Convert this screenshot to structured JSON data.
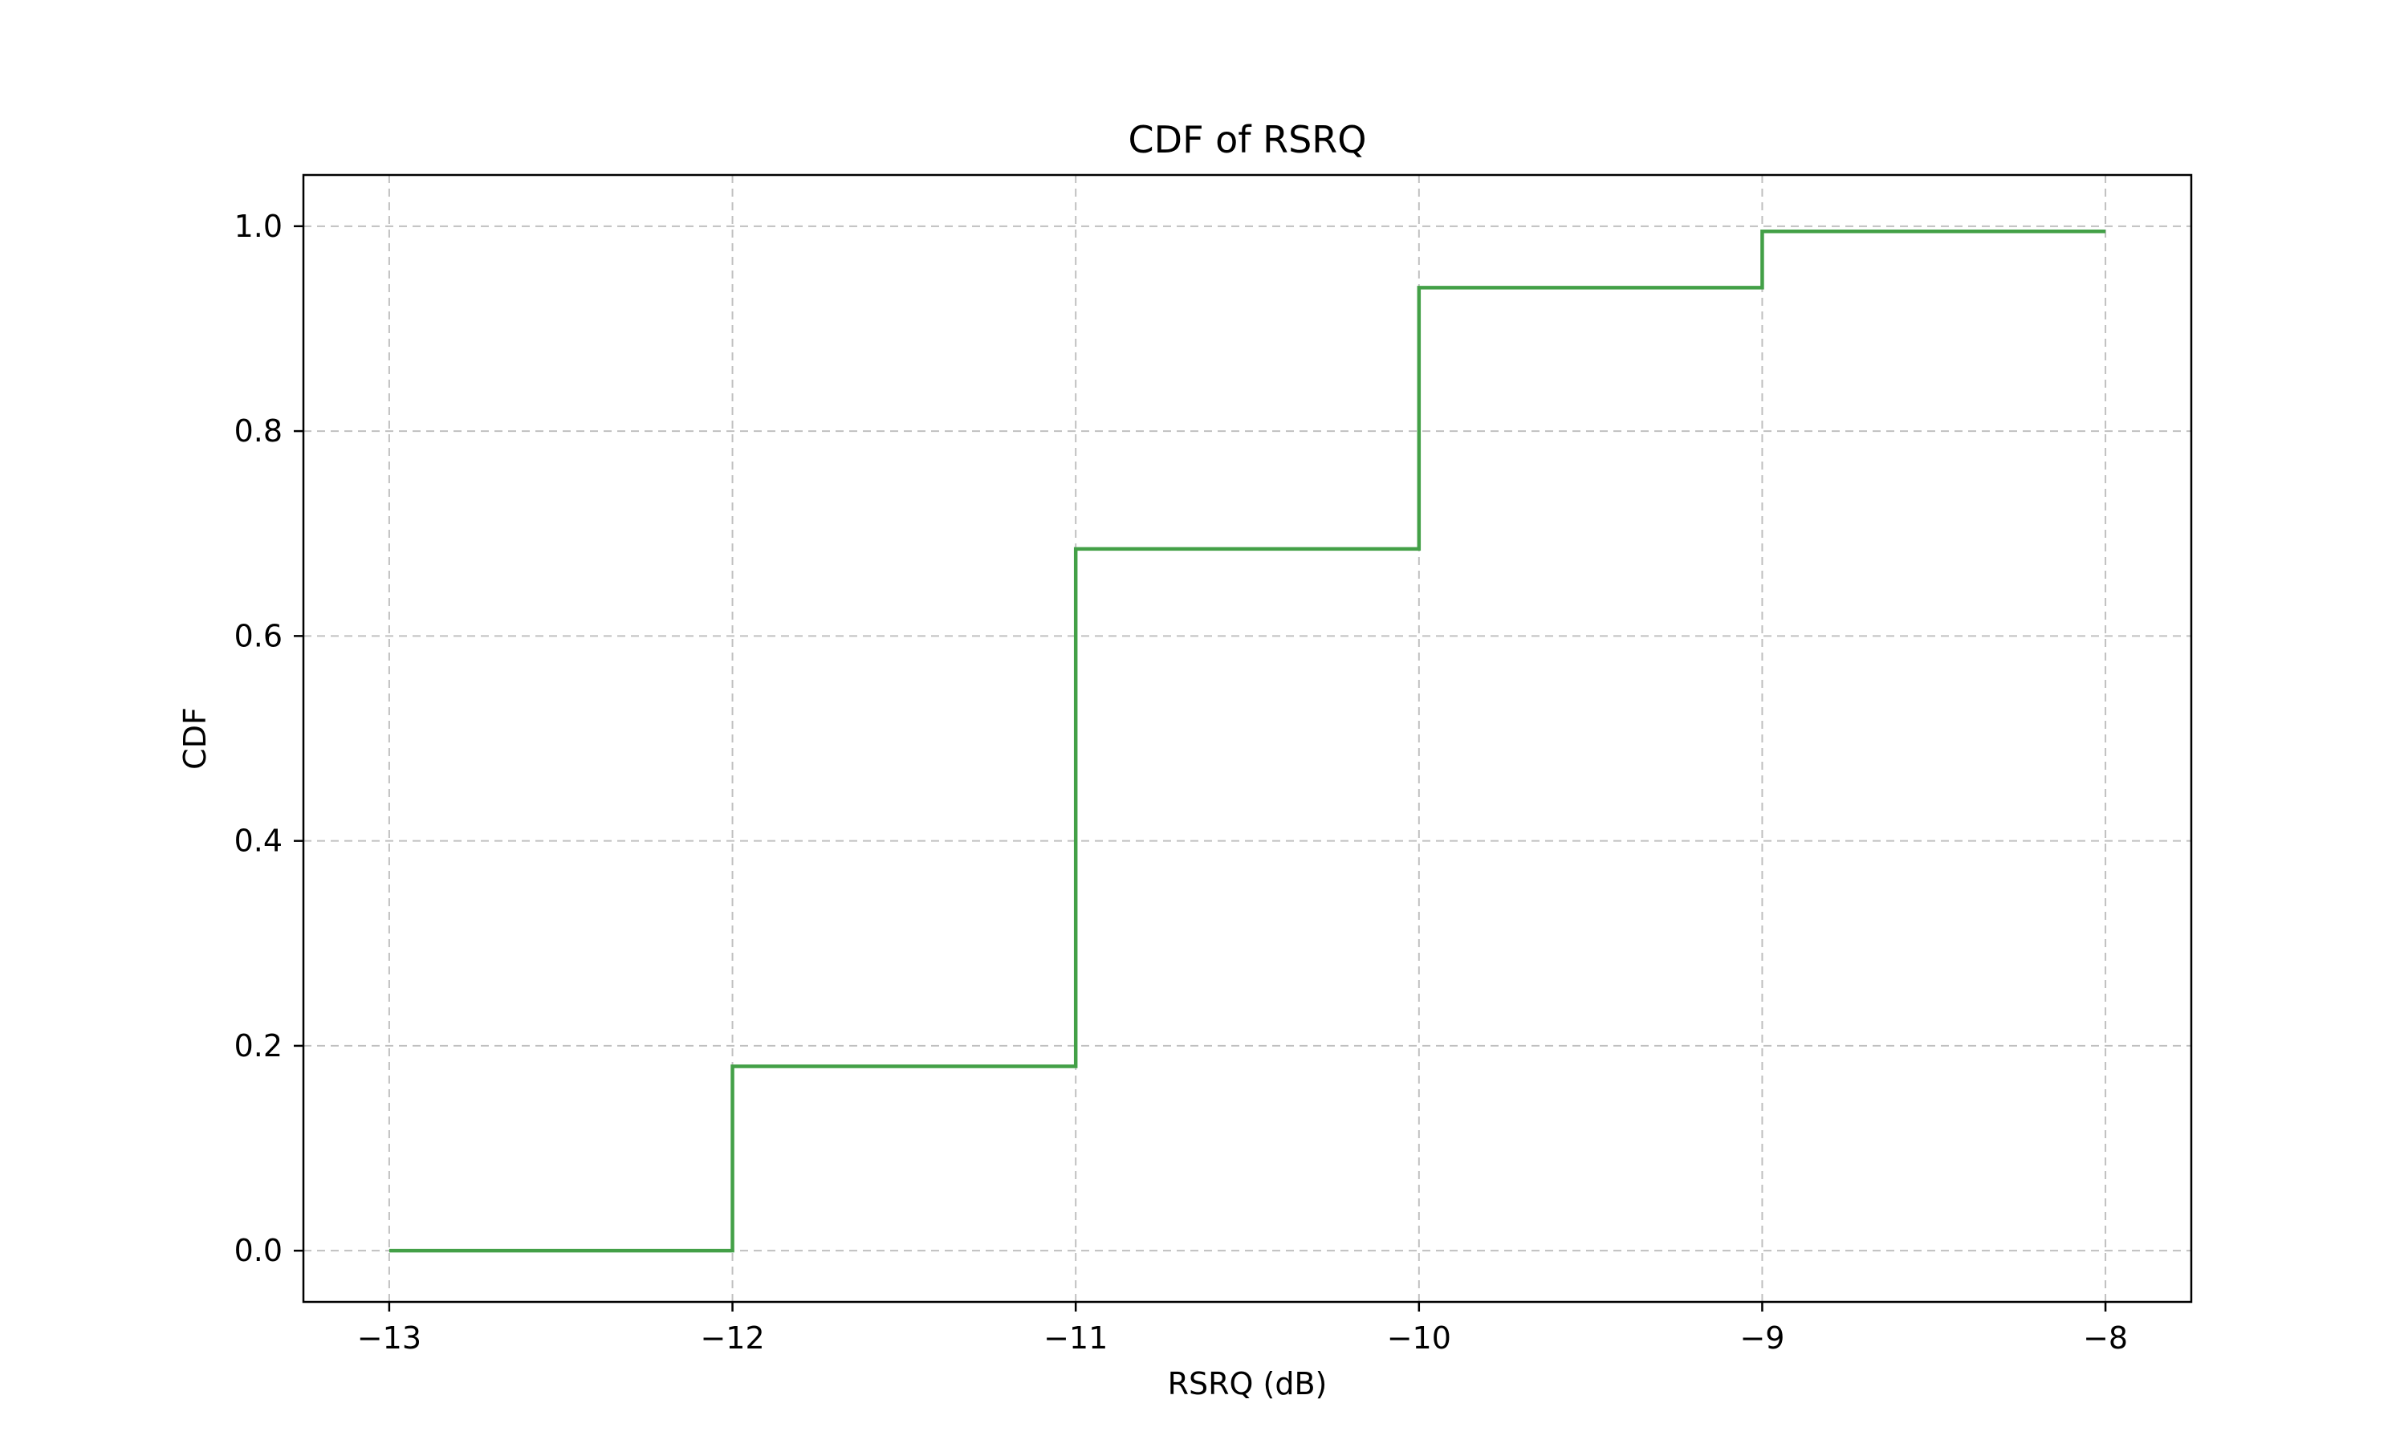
{
  "chart_data": {
    "type": "line",
    "step": true,
    "title": "CDF of RSRQ",
    "xlabel": "RSRQ (dB)",
    "ylabel": "CDF",
    "xlim": [
      -13.25,
      -7.75
    ],
    "ylim": [
      -0.05,
      1.05
    ],
    "x_ticks": [
      -13,
      -12,
      -11,
      -10,
      -9,
      -8
    ],
    "x_tick_labels": [
      "−13",
      "−12",
      "−11",
      "−10",
      "−9",
      "−8"
    ],
    "y_ticks": [
      0.0,
      0.2,
      0.4,
      0.6,
      0.8,
      1.0
    ],
    "y_tick_labels": [
      "0.0",
      "0.2",
      "0.4",
      "0.6",
      "0.8",
      "1.0"
    ],
    "grid": true,
    "series": [
      {
        "color": "#43a047",
        "x": [
          -13,
          -12,
          -12,
          -11,
          -11,
          -10,
          -10,
          -9,
          -9,
          -8
        ],
        "y": [
          0.0,
          0.0,
          0.18,
          0.18,
          0.685,
          0.685,
          0.94,
          0.94,
          0.995,
          0.995
        ]
      }
    ]
  }
}
